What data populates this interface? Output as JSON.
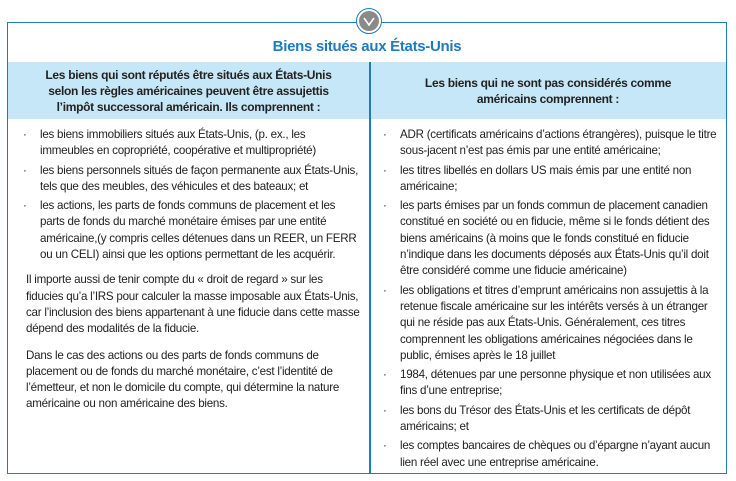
{
  "title": "Biens situés aux États-Unis",
  "badge_icon": "chevron-down-icon",
  "colors": {
    "accent": "#1d7bc0",
    "header_bg": "#c6e7f7"
  },
  "left": {
    "header": "Les biens qui sont réputés être situés aux États-Unis selon les règles américaines peuvent être assujettis l’impôt successoral américain. Ils comprennent :",
    "items": [
      "les biens immobiliers situés aux États-Unis, (p. ex., les immeubles en copropriété, coopérative et multipropriété)",
      "les biens personnels situés de façon permanente aux États-Unis, tels que des meubles, des véhicules et des bateaux; et",
      "les actions, les parts de fonds communs de placement et les parts de fonds du marché monétaire émises par une entité américaine,(y compris celles détenues dans un REER, un FERR ou un CELI) ainsi que les options permettant de les acquérir."
    ],
    "paragraphs": [
      "Il importe aussi de tenir compte du « droit de regard » sur les fiducies qu’a l’IRS pour calculer la masse imposable aux États-Unis, car l’inclusion des biens appartenant à une fiducie dans cette masse dépend des modalités de la fiducie.",
      "Dans le cas des actions ou des parts de fonds communs de placement ou de fonds du marché monétaire, c’est l’identité de l’émetteur, et non le domicile du compte, qui détermine la nature américaine ou non américaine des biens."
    ]
  },
  "right": {
    "header": "Les biens qui ne sont pas considérés comme américains comprennent :",
    "items": [
      "ADR (certificats américains d’actions étrangères), puisque le titre sous-jacent n’est pas émis par une entité américaine;",
      "les titres libellés en dollars US mais émis par une entité non américaine;",
      "les parts émises par un fonds commun de placement canadien constitué en société ou en fiducie, même si le fonds détient des biens américains (à moins que le fonds constitué en fiducie n’indique dans les documents déposés aux États-Unis qu’il doit être considéré comme une fiducie américaine)",
      "les obligations et titres d’emprunt américains non assujettis à la retenue fiscale américaine sur les intérêts versés à un étranger qui ne réside pas aux États-Unis. Généralement, ces titres comprennent les obligations américaines négociées dans le public, émises après le 18 juillet",
      "1984, détenues par une personne physique et non utilisées aux fins d’une entreprise;",
      "les bons du Trésor des États-Unis et les certificats de dépôt américains; et",
      "les comptes bancaires de chèques ou d’épargne n’ayant aucun lien réel avec une entreprise américaine."
    ]
  }
}
